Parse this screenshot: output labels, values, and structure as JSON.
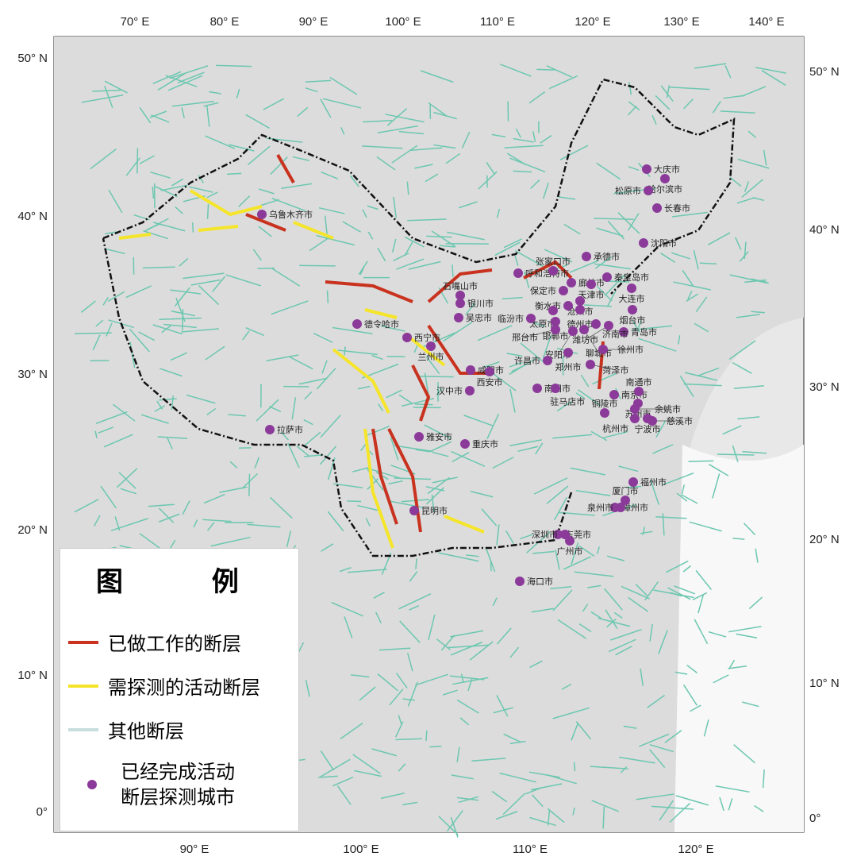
{
  "map": {
    "top_ticks": [
      "70° E",
      "80° E",
      "90° E",
      "100° E",
      "110° E",
      "120° E",
      "130° E",
      "140° E"
    ],
    "bottom_ticks": [
      "90° E",
      "100° E",
      "110° E",
      "120° E"
    ],
    "left_ticks": [
      "50° N",
      "40° N",
      "30° N",
      "20° N",
      "10° N",
      "0°"
    ],
    "right_ticks": [
      "50° N",
      "40° N",
      "30° N",
      "20° N",
      "10° N",
      "0°"
    ],
    "colors": {
      "studied_fault": "#c8321e",
      "to_detect_fault": "#f5e52a",
      "other_fault": "#6cc7b0",
      "city": "#8b3a9a",
      "border": "#111111",
      "background": "#e6e6e6"
    },
    "cities": [
      "大庆市",
      "哈尔滨市",
      "松原市",
      "长春市",
      "沈阳市",
      "承德市",
      "秦皇岛市",
      "大连市",
      "烟台市",
      "青岛市",
      "呼和浩特市",
      "张家口市",
      "廊坊市",
      "天津市",
      "保定市",
      "沧州市",
      "衡水市",
      "德州市",
      "太原市",
      "邯郸市",
      "济南市",
      "潍坊市",
      "聊城市",
      "安阳市",
      "邢台市",
      "临汾市",
      "郑州市",
      "许昌市",
      "菏泽市",
      "徐州市",
      "咸阳市",
      "西安市",
      "汉中市",
      "南阳市",
      "驻马店市",
      "南京市",
      "南通市",
      "苏州市",
      "铜陵市",
      "余姚市",
      "宁波市",
      "慈溪市",
      "杭州市",
      "重庆市",
      "福州市",
      "漳州市",
      "厦门市",
      "泉州市",
      "东莞市",
      "深圳市",
      "广州市",
      "海口市",
      "昆明市",
      "雅安市",
      "拉萨市",
      "乌鲁木齐市",
      "德令哈市",
      "西宁市",
      "兰州市",
      "银川市",
      "吴忠市",
      "石嘴山市"
    ]
  },
  "legend": {
    "title": "图 例",
    "items": [
      {
        "label": "已做工作的断层",
        "icon": "red-line"
      },
      {
        "label": "需探测的活动断层",
        "icon": "yellow-line"
      },
      {
        "label": "其他断层",
        "icon": "teal-line"
      },
      {
        "label": "已经完成活动\n断层探测城市",
        "icon": "purple-dot"
      }
    ]
  }
}
